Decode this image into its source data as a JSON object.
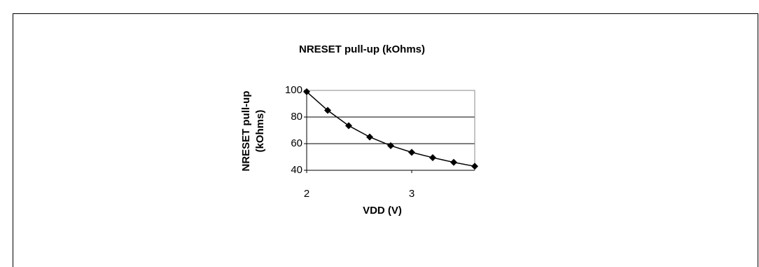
{
  "chart_data": {
    "type": "line",
    "title": "NRESET pull-up (kOhms)",
    "x_label": "VDD (V)",
    "y_label": [
      "NRESET pull-up",
      "(kOhms)"
    ],
    "x": [
      2,
      2.2,
      2.4,
      2.6,
      2.8,
      3,
      3.2,
      3.4,
      3.6
    ],
    "series": [
      {
        "color": "#000000",
        "values": [
          99,
          85,
          73.5,
          65,
          58.5,
          53.5,
          49.5,
          46,
          43
        ]
      }
    ],
    "xlim": [
      2,
      3.6
    ],
    "xticks": [
      2,
      3
    ],
    "ylim": [
      40,
      100
    ],
    "yticks": [
      40,
      60,
      80,
      100
    ],
    "grid": true,
    "marker": "diamond"
  }
}
